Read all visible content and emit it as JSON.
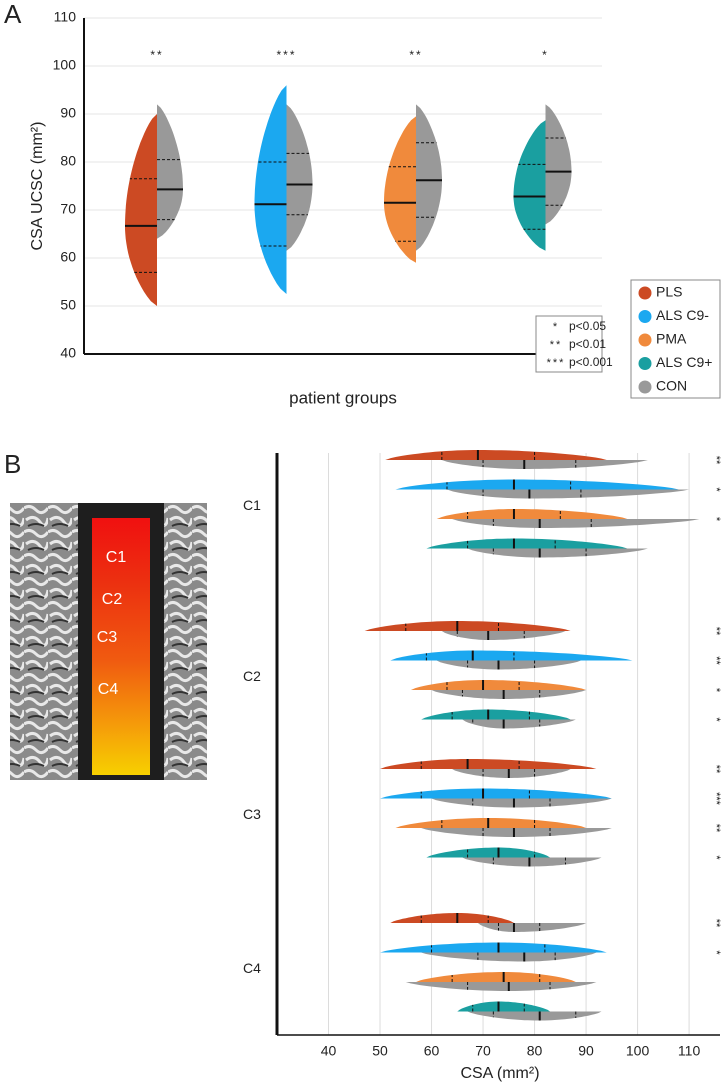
{
  "chart_data": [
    {
      "type": "split-violin",
      "panel": "A",
      "y_label": "CSA UCSC (mm²)",
      "x_label": "patient groups",
      "ylim": [
        40,
        110
      ],
      "yticks": [
        40,
        50,
        60,
        70,
        80,
        90,
        100,
        110
      ],
      "grid": true,
      "series": [
        {
          "name": "PLS",
          "color": "#cc4a23",
          "stats": [
            50,
            57,
            66.7,
            76.5,
            90
          ],
          "con": [
            64,
            68,
            74.3,
            80.5,
            92
          ],
          "significance": "**"
        },
        {
          "name": "ALS C9-",
          "color": "#1ba8f0",
          "stats": [
            52.5,
            62.5,
            71.2,
            80,
            96
          ],
          "con": [
            61.5,
            69,
            75.3,
            81.8,
            92
          ],
          "significance": "***"
        },
        {
          "name": "PMA",
          "color": "#f08a3c",
          "stats": [
            59,
            63.5,
            71.5,
            79,
            89.5
          ],
          "con": [
            61.5,
            68.5,
            76.2,
            84,
            92
          ],
          "significance": "**"
        },
        {
          "name": "ALS C9+",
          "color": "#1a9fa0",
          "stats": [
            61.5,
            66,
            72.8,
            79.5,
            88.7
          ],
          "con": [
            67,
            71,
            78,
            85,
            92
          ],
          "significance": "*"
        },
        {
          "name": "CON",
          "color": "#999999"
        }
      ],
      "sig_legend": [
        {
          "mark": "*",
          "label": "p<0.05"
        },
        {
          "mark": "**",
          "label": "p<0.01"
        },
        {
          "mark": "***",
          "label": "p<0.001"
        }
      ]
    },
    {
      "type": "split-violin-horizontal",
      "panel": "B",
      "x_label": "CSA (mm²)",
      "xlim": [
        30,
        116
      ],
      "xticks": [
        40,
        50,
        60,
        70,
        80,
        90,
        100,
        110
      ],
      "grid": true,
      "levels": [
        {
          "label": "C1",
          "rows": [
            {
              "stats": [
                51,
                62,
                69,
                80,
                94
              ],
              "con": [
                62,
                70,
                78,
                88,
                102
              ],
              "significance": "**"
            },
            {
              "stats": [
                53,
                63,
                76,
                87,
                108
              ],
              "con": [
                63,
                70,
                79,
                89,
                110
              ],
              "significance": "*"
            },
            {
              "stats": [
                61,
                67,
                76,
                85,
                98
              ],
              "con": [
                64,
                72,
                81,
                91,
                112
              ],
              "significance": "*"
            },
            {
              "stats": [
                59,
                67,
                76,
                84,
                98
              ],
              "con": [
                67,
                72,
                81,
                90,
                102
              ]
            }
          ]
        },
        {
          "label": "C2",
          "rows": [
            {
              "stats": [
                47,
                55,
                65,
                73,
                87
              ],
              "con": [
                62,
                65,
                71,
                78,
                86
              ],
              "significance": "**"
            },
            {
              "stats": [
                52,
                59,
                68,
                76,
                99
              ],
              "con": [
                61,
                67,
                73,
                80,
                89
              ],
              "significance": "**"
            },
            {
              "stats": [
                56,
                63,
                70,
                77,
                90
              ],
              "con": [
                60,
                66,
                74,
                81,
                90
              ],
              "significance": "*"
            },
            {
              "stats": [
                58,
                64,
                71,
                79,
                87
              ],
              "con": [
                66,
                68,
                74,
                81,
                88
              ],
              "significance": "*"
            }
          ]
        },
        {
          "label": "C3",
          "rows": [
            {
              "stats": [
                50,
                58,
                67,
                77,
                92
              ],
              "con": [
                64,
                70,
                75,
                80,
                87
              ],
              "significance": "**"
            },
            {
              "stats": [
                50,
                58,
                70,
                79,
                95
              ],
              "con": [
                60,
                68,
                76,
                83,
                95
              ],
              "significance": "***"
            },
            {
              "stats": [
                53,
                62,
                71,
                80,
                90
              ],
              "con": [
                58,
                70,
                76,
                83,
                95
              ],
              "significance": "**"
            },
            {
              "stats": [
                59,
                67,
                73,
                80,
                83
              ],
              "con": [
                66,
                72,
                79,
                86,
                93
              ],
              "significance": "*"
            }
          ]
        },
        {
          "label": "C4",
          "rows": [
            {
              "stats": [
                52,
                58,
                65,
                71,
                76
              ],
              "con": [
                69,
                73,
                76,
                81,
                90
              ],
              "significance": "**"
            },
            {
              "stats": [
                50,
                60,
                73,
                82,
                94
              ],
              "con": [
                58,
                69,
                78,
                84,
                92
              ],
              "significance": "*"
            },
            {
              "stats": [
                57,
                64,
                74,
                81,
                88
              ],
              "con": [
                55,
                67,
                75,
                83,
                92
              ]
            },
            {
              "stats": [
                65,
                68,
                73,
                78,
                83
              ],
              "con": [
                67,
                72,
                81,
                88,
                93
              ]
            }
          ]
        }
      ]
    }
  ]
}
